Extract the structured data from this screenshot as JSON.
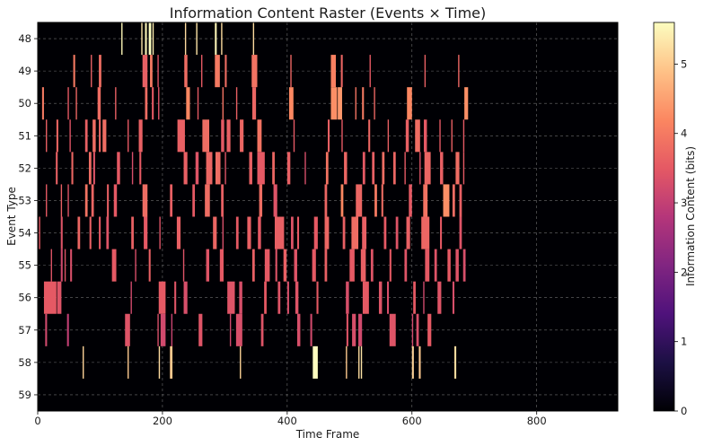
{
  "chart_data": {
    "type": "heatmap",
    "title": "Information Content Raster (Events × Time)",
    "xlabel": "Time Frame",
    "ylabel": "Event Type",
    "colorbar_label": "Information Content (bits)",
    "colormap": "magma",
    "xlim": [
      0,
      930
    ],
    "x_ticks": [
      0,
      200,
      400,
      600,
      800
    ],
    "y_categories": [
      48,
      49,
      50,
      51,
      52,
      53,
      54,
      55,
      56,
      57,
      58,
      59
    ],
    "color_range": [
      0,
      5.6
    ],
    "colorbar_ticks": [
      0,
      1,
      2,
      3,
      4,
      5
    ],
    "grid": true,
    "events": [
      {
        "event": 48,
        "segments": [
          [
            134,
            136,
            5.5
          ],
          [
            166,
            168,
            5.3
          ],
          [
            172,
            175,
            5.5
          ],
          [
            178,
            182,
            5.6
          ],
          [
            184,
            186,
            5.4
          ],
          [
            236,
            238,
            5.2
          ],
          [
            254,
            256,
            5.3
          ],
          [
            284,
            287,
            5.5
          ],
          [
            294,
            296,
            5.2
          ],
          [
            345,
            347,
            5.2
          ]
        ]
      },
      {
        "event": 49,
        "segments": [
          [
            57,
            60,
            4.0
          ],
          [
            85,
            87,
            3.6
          ],
          [
            98,
            102,
            3.8
          ],
          [
            168,
            176,
            3.6
          ],
          [
            180,
            184,
            4.0
          ],
          [
            192,
            194,
            3.4
          ],
          [
            235,
            240,
            3.8
          ],
          [
            262,
            264,
            3.5
          ],
          [
            284,
            292,
            4.0
          ],
          [
            300,
            303,
            3.8
          ],
          [
            343,
            352,
            3.9
          ],
          [
            405,
            407,
            3.7
          ],
          [
            470,
            478,
            4.1
          ],
          [
            486,
            489,
            3.7
          ],
          [
            532,
            534,
            3.5
          ],
          [
            620,
            622,
            3.6
          ],
          [
            674,
            676,
            3.7
          ]
        ]
      },
      {
        "event": 50,
        "segments": [
          [
            7,
            10,
            4.0
          ],
          [
            48,
            50,
            3.5
          ],
          [
            61,
            63,
            3.7
          ],
          [
            96,
            101,
            3.8
          ],
          [
            124,
            126,
            3.6
          ],
          [
            172,
            176,
            3.8
          ],
          [
            183,
            186,
            3.5
          ],
          [
            193,
            195,
            3.4
          ],
          [
            238,
            244,
            4.2
          ],
          [
            256,
            258,
            3.5
          ],
          [
            296,
            298,
            3.9
          ],
          [
            318,
            320,
            3.6
          ],
          [
            344,
            350,
            3.7
          ],
          [
            403,
            410,
            4.2
          ],
          [
            470,
            480,
            4.3
          ],
          [
            481,
            488,
            4.4
          ],
          [
            509,
            511,
            3.9
          ],
          [
            520,
            523,
            4.0
          ],
          [
            539,
            541,
            3.7
          ],
          [
            592,
            600,
            4.2
          ],
          [
            684,
            690,
            4.3
          ]
        ]
      },
      {
        "event": 51,
        "segments": [
          [
            13,
            15,
            3.6
          ],
          [
            30,
            33,
            3.7
          ],
          [
            51,
            53,
            3.4
          ],
          [
            76,
            80,
            3.6
          ],
          [
            88,
            93,
            3.8
          ],
          [
            98,
            101,
            3.7
          ],
          [
            104,
            110,
            3.8
          ],
          [
            144,
            146,
            3.5
          ],
          [
            162,
            168,
            3.6
          ],
          [
            224,
            236,
            3.6
          ],
          [
            264,
            275,
            3.8
          ],
          [
            294,
            299,
            3.5
          ],
          [
            303,
            309,
            3.6
          ],
          [
            324,
            330,
            3.7
          ],
          [
            352,
            359,
            3.9
          ],
          [
            410,
            412,
            3.5
          ],
          [
            465,
            468,
            3.6
          ],
          [
            487,
            489,
            3.5
          ],
          [
            530,
            533,
            3.7
          ],
          [
            561,
            563,
            3.6
          ],
          [
            590,
            595,
            3.6
          ],
          [
            605,
            613,
            3.8
          ],
          [
            619,
            624,
            3.5
          ],
          [
            644,
            646,
            3.5
          ],
          [
            663,
            665,
            3.6
          ],
          [
            682,
            684,
            3.5
          ]
        ]
      },
      {
        "event": 52,
        "segments": [
          [
            29,
            32,
            3.6
          ],
          [
            54,
            57,
            3.7
          ],
          [
            82,
            86,
            3.8
          ],
          [
            89,
            92,
            3.4
          ],
          [
            127,
            132,
            3.5
          ],
          [
            151,
            153,
            3.3
          ],
          [
            163,
            166,
            3.5
          ],
          [
            234,
            240,
            3.6
          ],
          [
            253,
            258,
            3.4
          ],
          [
            270,
            280,
            3.7
          ],
          [
            285,
            293,
            3.8
          ],
          [
            300,
            302,
            3.4
          ],
          [
            339,
            344,
            3.6
          ],
          [
            352,
            364,
            3.5
          ],
          [
            376,
            380,
            3.7
          ],
          [
            400,
            405,
            3.6
          ],
          [
            428,
            430,
            3.3
          ],
          [
            462,
            466,
            3.9
          ],
          [
            491,
            496,
            3.7
          ],
          [
            521,
            525,
            3.5
          ],
          [
            536,
            540,
            3.6
          ],
          [
            552,
            556,
            3.8
          ],
          [
            570,
            574,
            3.7
          ],
          [
            588,
            590,
            3.5
          ],
          [
            612,
            614,
            3.4
          ],
          [
            620,
            630,
            3.7
          ],
          [
            645,
            650,
            3.6
          ],
          [
            670,
            676,
            3.8
          ],
          [
            682,
            684,
            3.5
          ]
        ]
      },
      {
        "event": 53,
        "segments": [
          [
            13,
            15,
            3.5
          ],
          [
            37,
            39,
            3.6
          ],
          [
            48,
            50,
            3.4
          ],
          [
            76,
            80,
            3.9
          ],
          [
            86,
            90,
            3.7
          ],
          [
            111,
            114,
            3.6
          ],
          [
            122,
            127,
            3.5
          ],
          [
            168,
            176,
            3.8
          ],
          [
            212,
            216,
            3.6
          ],
          [
            248,
            252,
            3.5
          ],
          [
            268,
            276,
            3.8
          ],
          [
            294,
            298,
            3.6
          ],
          [
            355,
            360,
            3.8
          ],
          [
            378,
            384,
            3.4
          ],
          [
            460,
            464,
            3.7
          ],
          [
            486,
            490,
            4.2
          ],
          [
            510,
            520,
            3.7
          ],
          [
            540,
            544,
            4.0
          ],
          [
            551,
            554,
            3.8
          ],
          [
            595,
            600,
            3.5
          ],
          [
            618,
            625,
            3.9
          ],
          [
            650,
            660,
            4.3
          ],
          [
            665,
            669,
            3.8
          ],
          [
            676,
            680,
            3.6
          ]
        ]
      },
      {
        "event": 54,
        "segments": [
          [
            2,
            4,
            3.5
          ],
          [
            37,
            40,
            3.4
          ],
          [
            64,
            68,
            3.7
          ],
          [
            83,
            86,
            3.6
          ],
          [
            98,
            101,
            3.5
          ],
          [
            110,
            114,
            3.4
          ],
          [
            150,
            154,
            3.6
          ],
          [
            170,
            176,
            3.5
          ],
          [
            195,
            197,
            3.4
          ],
          [
            223,
            229,
            3.6
          ],
          [
            281,
            287,
            3.7
          ],
          [
            296,
            298,
            3.3
          ],
          [
            318,
            322,
            3.5
          ],
          [
            336,
            342,
            3.6
          ],
          [
            353,
            358,
            3.5
          ],
          [
            380,
            395,
            3.6
          ],
          [
            406,
            410,
            3.4
          ],
          [
            416,
            419,
            3.5
          ],
          [
            443,
            449,
            3.5
          ],
          [
            460,
            467,
            3.7
          ],
          [
            489,
            493,
            3.6
          ],
          [
            503,
            514,
            3.8
          ],
          [
            520,
            527,
            3.6
          ],
          [
            555,
            559,
            3.5
          ],
          [
            574,
            578,
            3.4
          ],
          [
            591,
            597,
            3.6
          ],
          [
            615,
            628,
            3.7
          ],
          [
            645,
            648,
            3.5
          ],
          [
            676,
            680,
            3.4
          ]
        ]
      },
      {
        "event": 55,
        "segments": [
          [
            21,
            23,
            3.4
          ],
          [
            37,
            40,
            3.2
          ],
          [
            43,
            45,
            3.4
          ],
          [
            52,
            55,
            3.3
          ],
          [
            119,
            126,
            3.5
          ],
          [
            156,
            158,
            3.3
          ],
          [
            178,
            181,
            3.6
          ],
          [
            233,
            235,
            3.4
          ],
          [
            270,
            275,
            3.4
          ],
          [
            292,
            298,
            3.5
          ],
          [
            344,
            348,
            3.6
          ],
          [
            364,
            372,
            3.5
          ],
          [
            381,
            384,
            3.4
          ],
          [
            394,
            399,
            3.6
          ],
          [
            411,
            416,
            3.4
          ],
          [
            440,
            446,
            3.5
          ],
          [
            460,
            464,
            3.6
          ],
          [
            500,
            508,
            3.5
          ],
          [
            518,
            526,
            3.6
          ],
          [
            534,
            538,
            3.4
          ],
          [
            564,
            567,
            3.5
          ],
          [
            588,
            592,
            3.4
          ],
          [
            621,
            628,
            3.5
          ],
          [
            636,
            640,
            3.4
          ],
          [
            657,
            662,
            3.5
          ],
          [
            670,
            675,
            3.4
          ],
          [
            682,
            686,
            3.3
          ]
        ]
      },
      {
        "event": 56,
        "segments": [
          [
            10,
            30,
            3.5
          ],
          [
            31,
            38,
            3.4
          ],
          [
            149,
            151,
            3.2
          ],
          [
            194,
            205,
            3.5
          ],
          [
            219,
            222,
            3.4
          ],
          [
            234,
            240,
            3.3
          ],
          [
            304,
            316,
            3.4
          ],
          [
            323,
            328,
            3.3
          ],
          [
            363,
            367,
            3.5
          ],
          [
            385,
            389,
            3.4
          ],
          [
            400,
            403,
            3.3
          ],
          [
            413,
            418,
            3.4
          ],
          [
            447,
            450,
            3.5
          ],
          [
            494,
            499,
            3.3
          ],
          [
            521,
            531,
            3.5
          ],
          [
            547,
            552,
            3.4
          ],
          [
            560,
            563,
            3.3
          ],
          [
            602,
            606,
            3.5
          ],
          [
            618,
            620,
            3.2
          ],
          [
            641,
            647,
            3.4
          ],
          [
            665,
            668,
            3.3
          ]
        ]
      },
      {
        "event": 57,
        "segments": [
          [
            12,
            15,
            3.2
          ],
          [
            47,
            50,
            3.0
          ],
          [
            140,
            148,
            3.4
          ],
          [
            192,
            194,
            3.3
          ],
          [
            197,
            205,
            3.2
          ],
          [
            214,
            216,
            3.1
          ],
          [
            258,
            264,
            3.4
          ],
          [
            308,
            310,
            3.2
          ],
          [
            318,
            328,
            3.3
          ],
          [
            358,
            362,
            3.4
          ],
          [
            416,
            421,
            3.3
          ],
          [
            437,
            440,
            3.2
          ],
          [
            495,
            498,
            3.4
          ],
          [
            504,
            510,
            3.3
          ],
          [
            514,
            520,
            3.2
          ],
          [
            564,
            574,
            3.4
          ],
          [
            600,
            602,
            3.2
          ],
          [
            607,
            611,
            3.3
          ],
          [
            625,
            631,
            3.5
          ]
        ]
      },
      {
        "event": 58,
        "segments": [
          [
            72,
            74,
            5.1
          ],
          [
            144,
            146,
            5.0
          ],
          [
            194,
            196,
            5.2
          ],
          [
            212,
            216,
            5.0
          ],
          [
            324,
            326,
            5.1
          ],
          [
            441,
            449,
            5.6
          ],
          [
            494,
            496,
            5.0
          ],
          [
            514,
            516,
            5.2
          ],
          [
            518,
            520,
            5.3
          ],
          [
            600,
            603,
            5.1
          ],
          [
            611,
            614,
            5.0
          ],
          [
            668,
            671,
            5.2
          ]
        ]
      },
      {
        "event": 59,
        "segments": []
      }
    ]
  }
}
